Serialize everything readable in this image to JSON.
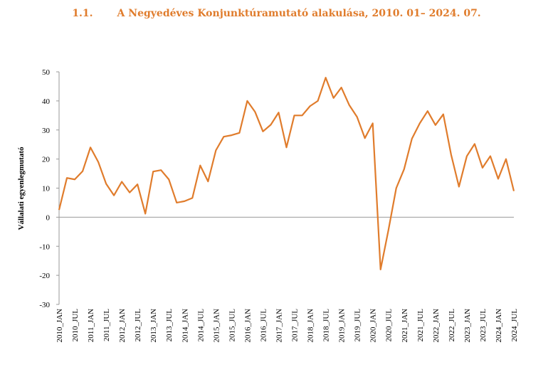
{
  "title": {
    "number": "1.1.",
    "text": "A Negyedéves Konjunktúramutató alakulása, 2010. 01– 2024. 07."
  },
  "colors": {
    "line": "#E07C2C",
    "title": "#E07C2C",
    "axis": "#999999"
  },
  "chart_data": {
    "type": "line",
    "title": "A Negyedéves Konjunktúramutató alakulása, 2010. 01– 2024. 07.",
    "xlabel": "",
    "ylabel": "Vállalati egyenlegmutató",
    "ylim": [
      -30,
      50
    ],
    "yticks": [
      50,
      40,
      30,
      20,
      10,
      0,
      -10,
      -20,
      -30
    ],
    "grid": false,
    "legend": "none",
    "categories": [
      "2010_JAN",
      "2010_APR",
      "2010_JUL",
      "2010_OCT",
      "2011_JAN",
      "2011_APR",
      "2011_JUL",
      "2011_OCT",
      "2012_JAN",
      "2012_APR",
      "2012_JUL",
      "2012_OCT",
      "2013_JAN",
      "2013_APR",
      "2013_JUL",
      "2013_OCT",
      "2014_JAN",
      "2014_APR",
      "2014_JUL",
      "2014_OCT",
      "2015_JAN",
      "2015_APR",
      "2015_JUL",
      "2015_OCT",
      "2016_JAN",
      "2016_APR",
      "2016_JUL",
      "2016_OCT",
      "2017_JAN",
      "2017_APR",
      "2017_JUL",
      "2017_OCT",
      "2018_JAN",
      "2018_APR",
      "2018_JUL",
      "2018_OCT",
      "2019_JAN",
      "2019_APR",
      "2019_JUL",
      "2019_OCT",
      "2020_JAN",
      "2020_APR",
      "2020_JUL",
      "2020_OCT",
      "2021_JAN",
      "2021_APR",
      "2021_JUL",
      "2021_OCT",
      "2022_JAN",
      "2022_APR",
      "2022_JUL",
      "2022_OCT",
      "2023_JAN",
      "2023_APR",
      "2023_JUL",
      "2023_OCT",
      "2024_JAN",
      "2024_APR",
      "2024_JUL"
    ],
    "tick_labels": [
      "2010_JAN",
      "2010_JUL",
      "2011_JAN",
      "2011_JUL",
      "2012_JAN",
      "2012_JUL",
      "2013_JAN",
      "2013_JUL",
      "2014_JAN",
      "2014_JUL",
      "2015_JAN",
      "2015_JUL",
      "2016_JAN",
      "2016_JUL",
      "2017_JAN",
      "2017_JUL",
      "2018_JAN",
      "2018_JUL",
      "2019_JAN",
      "2019_JUL",
      "2020_JAN",
      "2020_JUL",
      "2021_JAN",
      "2021_JUL",
      "2022_JAN",
      "2022_JUL",
      "2023_JAN",
      "2023_JUL",
      "2024_JAN",
      "2024_JUL"
    ],
    "series": [
      {
        "values": [
          2.5,
          13.5,
          13.0,
          15.8,
          24.0,
          19.0,
          11.5,
          7.5,
          12.2,
          8.5,
          11.3,
          1.2,
          15.7,
          16.2,
          13.0,
          5.0,
          5.5,
          6.6,
          17.8,
          12.3,
          23.0,
          27.7,
          28.2,
          29.0,
          40.0,
          36.2,
          29.5,
          31.8,
          36.0,
          24.0,
          35.0,
          35.0,
          38.2,
          40.0,
          48.0,
          41.0,
          44.6,
          38.6,
          34.5,
          27.2,
          32.3,
          -18.0,
          -4.5,
          10.0,
          16.5,
          27.0,
          32.3,
          36.5,
          31.7,
          35.4,
          21.5,
          10.5,
          21.0,
          25.2,
          17.0,
          21.0,
          13.2,
          20.0,
          9.0
        ]
      }
    ]
  }
}
